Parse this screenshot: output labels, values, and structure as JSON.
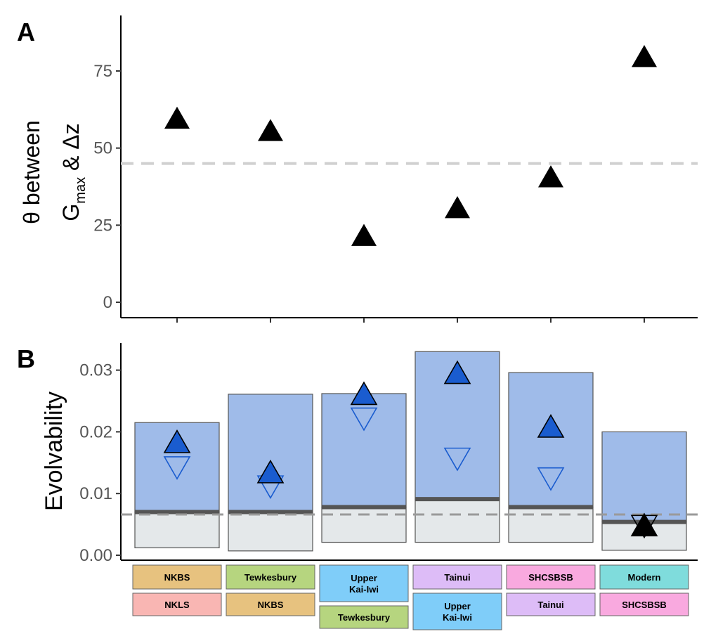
{
  "chart_data": [
    {
      "panel": "A",
      "type": "scatter",
      "ylabel": {
        "line1": "θ between",
        "line2_main": "G",
        "line2_sub": "max",
        "line2_rest": " & Δz"
      },
      "ylim": [
        -5,
        93
      ],
      "yticks": [
        0,
        25,
        50,
        75
      ],
      "reference_line": 45,
      "marker": "filled-up-triangle",
      "marker_color": "#000000",
      "points": [
        {
          "comparison": 1,
          "y": 59
        },
        {
          "comparison": 2,
          "y": 55
        },
        {
          "comparison": 3,
          "y": 21
        },
        {
          "comparison": 4,
          "y": 30
        },
        {
          "comparison": 5,
          "y": 40
        },
        {
          "comparison": 6,
          "y": 79
        }
      ]
    },
    {
      "panel": "B",
      "type": "bar",
      "ylabel": "Evolvability",
      "ylim": [
        -0.0008,
        0.0344
      ],
      "yticks": [
        "0.00",
        "0.01",
        "0.02",
        "0.03"
      ],
      "reference_line": 0.0066,
      "colors": {
        "upper_range": "#9fbbe9",
        "lower_range": "#e4e8ea",
        "median": "#555555",
        "filled_triangle": "#1a5ccf"
      },
      "groups": [
        {
          "range_max": 0.0215,
          "median": 0.007,
          "range_min": 0.0012,
          "up": 0.018,
          "down": 0.0146,
          "triangle_color": "#1a5ccf"
        },
        {
          "range_max": 0.0261,
          "median": 0.007,
          "range_min": 0.0007,
          "up": 0.0131,
          "down": 0.0115,
          "triangle_color": "#1a5ccf"
        },
        {
          "range_max": 0.0262,
          "median": 0.0078,
          "range_min": 0.0021,
          "up": 0.0258,
          "down": 0.0225,
          "triangle_color": "#1a5ccf"
        },
        {
          "range_max": 0.033,
          "median": 0.0091,
          "range_min": 0.0021,
          "up": 0.0292,
          "down": 0.016,
          "triangle_color": "#1a5ccf"
        },
        {
          "range_max": 0.0296,
          "median": 0.0078,
          "range_min": 0.0021,
          "up": 0.0205,
          "down": 0.0128,
          "triangle_color": "#1a5ccf"
        },
        {
          "range_max": 0.02,
          "median": 0.0054,
          "range_min": 0.0008,
          "up": 0.0045,
          "down": 0.0051,
          "triangle_color": "#000000"
        }
      ]
    }
  ],
  "panel_labels": {
    "a": "A",
    "b": "B"
  },
  "population_colors": {
    "NKBS": "#e7c27f",
    "NKLS": "#f9b6b3",
    "Tewkesbury": "#b6d57f",
    "Upper Kai-Iwi": "#7fcdf9",
    "Tainui": "#ddbcf7",
    "SHCSBSB": "#f9a9df",
    "Modern": "#7fdcdc"
  },
  "comparisons": [
    {
      "top": [
        "NKBS"
      ],
      "bottom": [
        "NKLS"
      ]
    },
    {
      "top": [
        "Tewkesbury"
      ],
      "bottom": [
        "NKBS"
      ]
    },
    {
      "top": [
        "Upper",
        "Kai-Iwi"
      ],
      "bottom": [
        "Tewkesbury"
      ]
    },
    {
      "top": [
        "Tainui"
      ],
      "bottom": [
        "Upper",
        "Kai-Iwi"
      ]
    },
    {
      "top": [
        "SHCSBSB"
      ],
      "bottom": [
        "Tainui"
      ]
    },
    {
      "top": [
        "Modern"
      ],
      "bottom": [
        "SHCSBSB"
      ]
    }
  ]
}
